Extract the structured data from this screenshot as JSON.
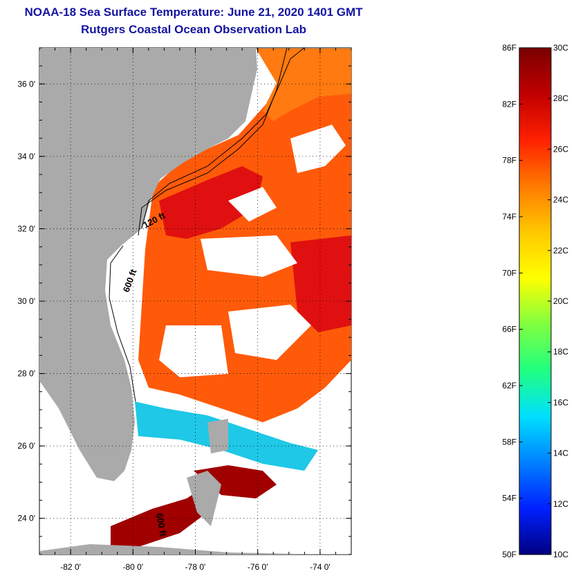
{
  "header": {
    "title": "NOAA-18 Sea Surface Temperature:  June 21, 2020 1401 GMT",
    "subtitle": "Rutgers Coastal Ocean Observation Lab"
  },
  "map": {
    "lon_range": [
      -83,
      -73
    ],
    "lat_range": [
      23,
      37
    ],
    "lat_ticks": [
      {
        "value": 36,
        "label": "36 0'"
      },
      {
        "value": 34,
        "label": "34 0'"
      },
      {
        "value": 32,
        "label": "32 0'"
      },
      {
        "value": 30,
        "label": "30 0'"
      },
      {
        "value": 28,
        "label": "28 0'"
      },
      {
        "value": 26,
        "label": "26 0'"
      },
      {
        "value": 24,
        "label": "24 0'"
      }
    ],
    "lon_ticks": [
      {
        "value": -82,
        "label": "-82 0'"
      },
      {
        "value": -80,
        "label": "-80 0'"
      },
      {
        "value": -78,
        "label": "-78 0'"
      },
      {
        "value": -76,
        "label": "-76 0'"
      },
      {
        "value": -74,
        "label": "-74 0'"
      }
    ],
    "contour_labels": {
      "c120": "120 ft",
      "c600": "600 ft",
      "c600_south": "600 ft"
    },
    "colors": {
      "land": "#aaaaaa",
      "cloud": "#ffffff",
      "warm": "#ff5a0a",
      "hot": "#e01010",
      "dark_red": "#a00000",
      "orange": "#ff7a10",
      "cool": "#1ec8e6"
    }
  },
  "colorbar": {
    "fahrenheit": [
      "86F",
      "82F",
      "78F",
      "74F",
      "70F",
      "66F",
      "62F",
      "58F",
      "54F",
      "50F"
    ],
    "celsius": [
      "30C",
      "28C",
      "26C",
      "24C",
      "22C",
      "20C",
      "18C",
      "16C",
      "14C",
      "12C",
      "10C"
    ],
    "gradient": [
      "#7a0000",
      "#c00000",
      "#ff2000",
      "#ff7a00",
      "#ffc800",
      "#ffff00",
      "#80ff40",
      "#20ff80",
      "#00e0ff",
      "#0080ff",
      "#0020ff",
      "#000080"
    ]
  }
}
